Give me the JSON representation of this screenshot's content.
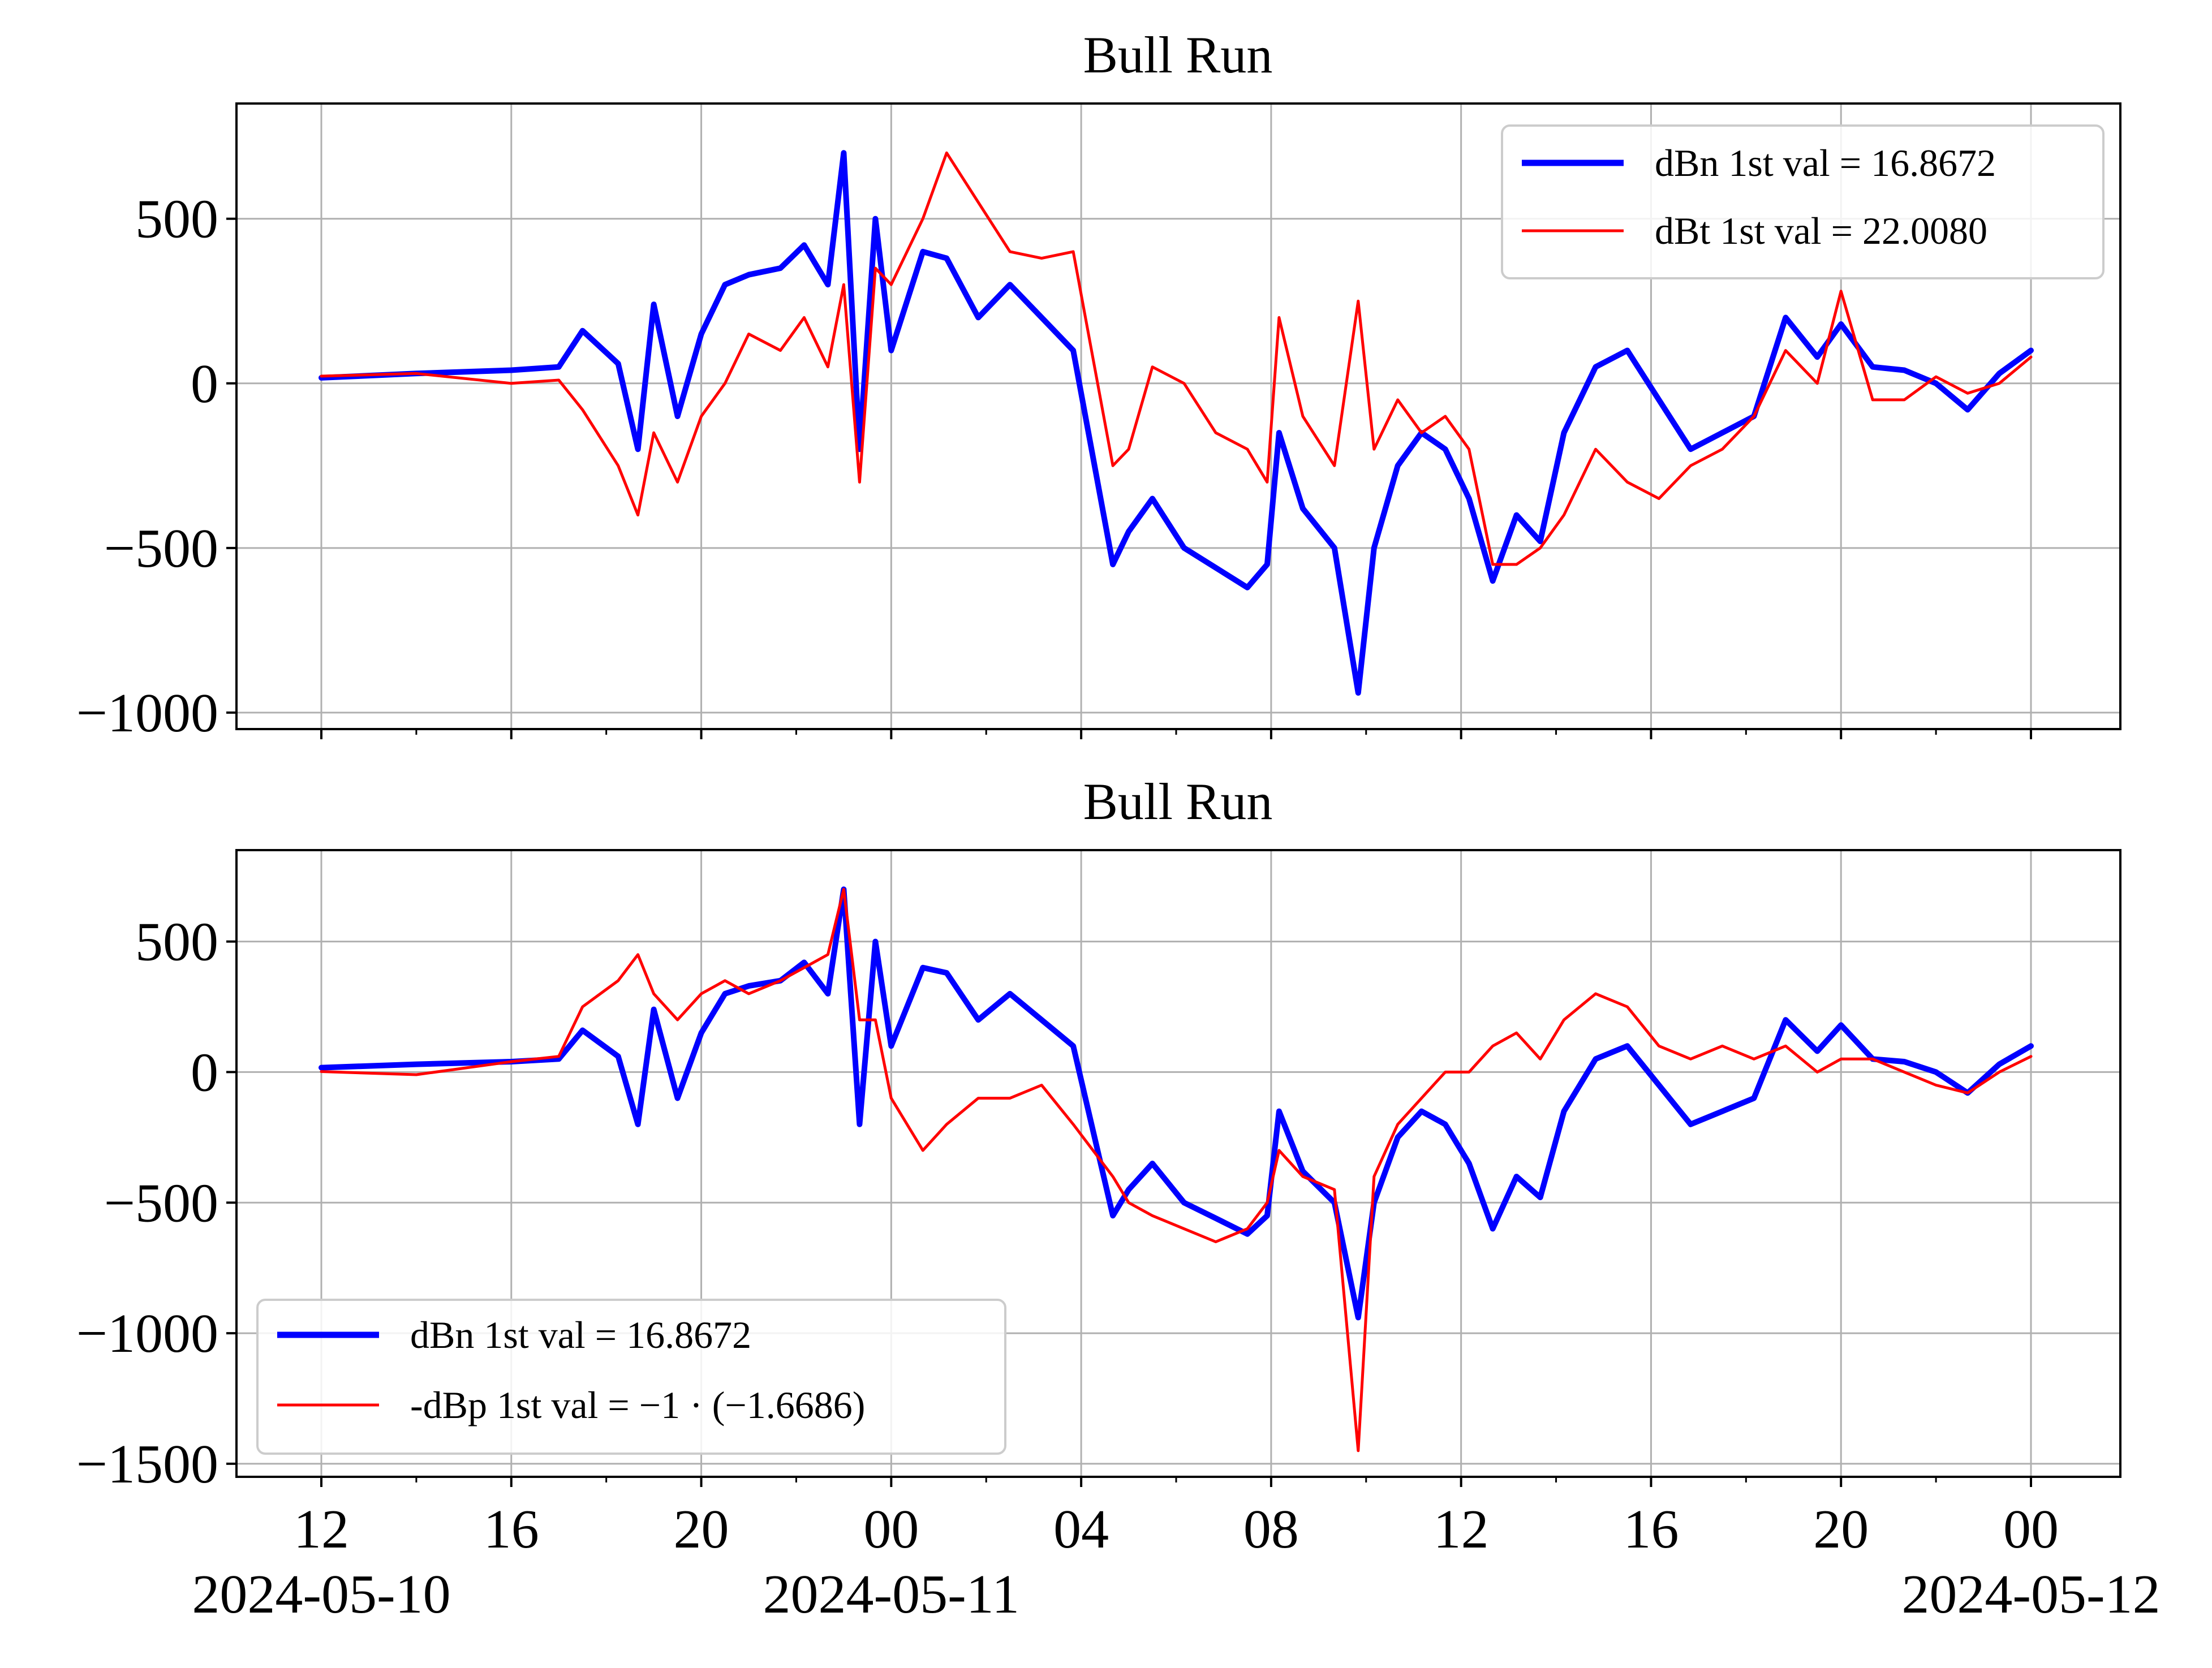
{
  "chart_data": [
    {
      "type": "line",
      "title": "Bull Run",
      "ylim": [
        -1050,
        850
      ],
      "yticks": [
        500,
        0,
        -500,
        -1000
      ],
      "ytick_labels": [
        "500",
        "0",
        "−500",
        "−1000"
      ],
      "x_range_hours": [
        "2024-05-10 12:00",
        "2024-05-12 00:00"
      ],
      "xticks": [
        "2024-05-10 12:00",
        "2024-05-10 16:00",
        "2024-05-10 20:00",
        "2024-05-11 00:00",
        "2024-05-11 04:00",
        "2024-05-11 08:00",
        "2024-05-11 12:00",
        "2024-05-11 16:00",
        "2024-05-11 20:00",
        "2024-05-12 00:00"
      ],
      "grid": true,
      "legend_position": "upper right",
      "series": [
        {
          "name": "dBn 1st val = 16.8672",
          "color": "#0000ff",
          "linewidth": "thick",
          "x": [
            "2024-05-10 12:00",
            "2024-05-10 14:00",
            "2024-05-10 16:00",
            "2024-05-10 17:00",
            "2024-05-10 17:30",
            "2024-05-10 18:15",
            "2024-05-10 18:40",
            "2024-05-10 19:00",
            "2024-05-10 19:30",
            "2024-05-10 20:00",
            "2024-05-10 20:30",
            "2024-05-10 21:00",
            "2024-05-10 21:40",
            "2024-05-10 22:10",
            "2024-05-10 22:40",
            "2024-05-10 23:00",
            "2024-05-10 23:20",
            "2024-05-10 23:40",
            "2024-05-11 00:00",
            "2024-05-11 00:40",
            "2024-05-11 01:10",
            "2024-05-11 01:50",
            "2024-05-11 02:30",
            "2024-05-11 03:10",
            "2024-05-11 03:50",
            "2024-05-11 04:40",
            "2024-05-11 05:00",
            "2024-05-11 05:30",
            "2024-05-11 06:10",
            "2024-05-11 06:50",
            "2024-05-11 07:30",
            "2024-05-11 07:55",
            "2024-05-11 08:10",
            "2024-05-11 08:40",
            "2024-05-11 09:20",
            "2024-05-11 09:50",
            "2024-05-11 10:10",
            "2024-05-11 10:40",
            "2024-05-11 11:10",
            "2024-05-11 11:40",
            "2024-05-11 12:10",
            "2024-05-11 12:40",
            "2024-05-11 13:10",
            "2024-05-11 13:40",
            "2024-05-11 14:10",
            "2024-05-11 14:50",
            "2024-05-11 15:30",
            "2024-05-11 16:10",
            "2024-05-11 16:50",
            "2024-05-11 17:30",
            "2024-05-11 18:10",
            "2024-05-11 18:50",
            "2024-05-11 19:30",
            "2024-05-11 20:00",
            "2024-05-11 20:40",
            "2024-05-11 21:20",
            "2024-05-11 22:00",
            "2024-05-11 22:40",
            "2024-05-11 23:20",
            "2024-05-12 00:00"
          ],
          "y": [
            17,
            30,
            40,
            50,
            160,
            60,
            -200,
            240,
            -100,
            150,
            300,
            330,
            350,
            420,
            300,
            700,
            -200,
            500,
            100,
            400,
            380,
            200,
            300,
            200,
            100,
            -550,
            -450,
            -350,
            -500,
            -560,
            -620,
            -550,
            -150,
            -380,
            -500,
            -940,
            -500,
            -250,
            -150,
            -200,
            -350,
            -600,
            -400,
            -480,
            -150,
            50,
            100,
            -50,
            -200,
            -150,
            -100,
            200,
            80,
            180,
            50,
            40,
            0,
            -80,
            30,
            100
          ]
        },
        {
          "name": "dBt 1st val = 22.0080",
          "color": "#ff0000",
          "linewidth": "thin",
          "x": [
            "2024-05-10 12:00",
            "2024-05-10 14:00",
            "2024-05-10 16:00",
            "2024-05-10 17:00",
            "2024-05-10 17:30",
            "2024-05-10 18:15",
            "2024-05-10 18:40",
            "2024-05-10 19:00",
            "2024-05-10 19:30",
            "2024-05-10 20:00",
            "2024-05-10 20:30",
            "2024-05-10 21:00",
            "2024-05-10 21:40",
            "2024-05-10 22:10",
            "2024-05-10 22:40",
            "2024-05-10 23:00",
            "2024-05-10 23:20",
            "2024-05-10 23:40",
            "2024-05-11 00:00",
            "2024-05-11 00:40",
            "2024-05-11 01:10",
            "2024-05-11 01:50",
            "2024-05-11 02:30",
            "2024-05-11 03:10",
            "2024-05-11 03:50",
            "2024-05-11 04:40",
            "2024-05-11 05:00",
            "2024-05-11 05:30",
            "2024-05-11 06:10",
            "2024-05-11 06:50",
            "2024-05-11 07:30",
            "2024-05-11 07:55",
            "2024-05-11 08:10",
            "2024-05-11 08:40",
            "2024-05-11 09:20",
            "2024-05-11 09:50",
            "2024-05-11 10:10",
            "2024-05-11 10:40",
            "2024-05-11 11:10",
            "2024-05-11 11:40",
            "2024-05-11 12:10",
            "2024-05-11 12:40",
            "2024-05-11 13:10",
            "2024-05-11 13:40",
            "2024-05-11 14:10",
            "2024-05-11 14:50",
            "2024-05-11 15:30",
            "2024-05-11 16:10",
            "2024-05-11 16:50",
            "2024-05-11 17:30",
            "2024-05-11 18:10",
            "2024-05-11 18:50",
            "2024-05-11 19:30",
            "2024-05-11 20:00",
            "2024-05-11 20:40",
            "2024-05-11 21:20",
            "2024-05-11 22:00",
            "2024-05-11 22:40",
            "2024-05-11 23:20",
            "2024-05-12 00:00"
          ],
          "y": [
            22,
            30,
            0,
            10,
            -80,
            -250,
            -400,
            -150,
            -300,
            -100,
            0,
            150,
            100,
            200,
            50,
            300,
            -300,
            350,
            300,
            500,
            700,
            550,
            400,
            380,
            400,
            -250,
            -200,
            50,
            0,
            -150,
            -200,
            -300,
            200,
            -100,
            -250,
            250,
            -200,
            -50,
            -150,
            -100,
            -200,
            -550,
            -550,
            -500,
            -400,
            -200,
            -300,
            -350,
            -250,
            -200,
            -100,
            100,
            0,
            280,
            -50,
            -50,
            20,
            -30,
            0,
            80
          ]
        }
      ]
    },
    {
      "type": "line",
      "title": "Bull Run",
      "ylim": [
        -1550,
        850
      ],
      "yticks": [
        500,
        0,
        -500,
        -1000,
        -1500
      ],
      "ytick_labels": [
        "500",
        "0",
        "−500",
        "−1000",
        "−1500"
      ],
      "x_range_hours": [
        "2024-05-10 12:00",
        "2024-05-12 00:00"
      ],
      "xticks": [
        "2024-05-10 12:00",
        "2024-05-10 16:00",
        "2024-05-10 20:00",
        "2024-05-11 00:00",
        "2024-05-11 04:00",
        "2024-05-11 08:00",
        "2024-05-11 12:00",
        "2024-05-11 16:00",
        "2024-05-11 20:00",
        "2024-05-12 00:00"
      ],
      "xtick_labels": [
        "12",
        "16",
        "20",
        "00",
        "04",
        "08",
        "12",
        "16",
        "20",
        "00"
      ],
      "date_labels": [
        {
          "at": "2024-05-10 12:00",
          "text": "2024-05-10"
        },
        {
          "at": "2024-05-11 00:00",
          "text": "2024-05-11"
        },
        {
          "at": "2024-05-12 00:00",
          "text": "2024-05-12"
        }
      ],
      "grid": true,
      "legend_position": "lower left",
      "series": [
        {
          "name": "dBn 1st val = 16.8672",
          "color": "#0000ff",
          "linewidth": "thick",
          "x": [
            "2024-05-10 12:00",
            "2024-05-10 14:00",
            "2024-05-10 16:00",
            "2024-05-10 17:00",
            "2024-05-10 17:30",
            "2024-05-10 18:15",
            "2024-05-10 18:40",
            "2024-05-10 19:00",
            "2024-05-10 19:30",
            "2024-05-10 20:00",
            "2024-05-10 20:30",
            "2024-05-10 21:00",
            "2024-05-10 21:40",
            "2024-05-10 22:10",
            "2024-05-10 22:40",
            "2024-05-10 23:00",
            "2024-05-10 23:20",
            "2024-05-10 23:40",
            "2024-05-11 00:00",
            "2024-05-11 00:40",
            "2024-05-11 01:10",
            "2024-05-11 01:50",
            "2024-05-11 02:30",
            "2024-05-11 03:10",
            "2024-05-11 03:50",
            "2024-05-11 04:40",
            "2024-05-11 05:00",
            "2024-05-11 05:30",
            "2024-05-11 06:10",
            "2024-05-11 06:50",
            "2024-05-11 07:30",
            "2024-05-11 07:55",
            "2024-05-11 08:10",
            "2024-05-11 08:40",
            "2024-05-11 09:20",
            "2024-05-11 09:50",
            "2024-05-11 10:10",
            "2024-05-11 10:40",
            "2024-05-11 11:10",
            "2024-05-11 11:40",
            "2024-05-11 12:10",
            "2024-05-11 12:40",
            "2024-05-11 13:10",
            "2024-05-11 13:40",
            "2024-05-11 14:10",
            "2024-05-11 14:50",
            "2024-05-11 15:30",
            "2024-05-11 16:10",
            "2024-05-11 16:50",
            "2024-05-11 17:30",
            "2024-05-11 18:10",
            "2024-05-11 18:50",
            "2024-05-11 19:30",
            "2024-05-11 20:00",
            "2024-05-11 20:40",
            "2024-05-11 21:20",
            "2024-05-11 22:00",
            "2024-05-11 22:40",
            "2024-05-11 23:20",
            "2024-05-12 00:00"
          ],
          "y": [
            17,
            30,
            40,
            50,
            160,
            60,
            -200,
            240,
            -100,
            150,
            300,
            330,
            350,
            420,
            300,
            700,
            -200,
            500,
            100,
            400,
            380,
            200,
            300,
            200,
            100,
            -550,
            -450,
            -350,
            -500,
            -560,
            -620,
            -550,
            -150,
            -380,
            -500,
            -940,
            -500,
            -250,
            -150,
            -200,
            -350,
            -600,
            -400,
            -480,
            -150,
            50,
            100,
            -50,
            -200,
            -150,
            -100,
            200,
            80,
            180,
            50,
            40,
            0,
            -80,
            30,
            100
          ]
        },
        {
          "name": "-dBp 1st val = −1 · (−1.6686)",
          "color": "#ff0000",
          "linewidth": "thin",
          "x": [
            "2024-05-10 12:00",
            "2024-05-10 14:00",
            "2024-05-10 16:00",
            "2024-05-10 17:00",
            "2024-05-10 17:30",
            "2024-05-10 18:15",
            "2024-05-10 18:40",
            "2024-05-10 19:00",
            "2024-05-10 19:30",
            "2024-05-10 20:00",
            "2024-05-10 20:30",
            "2024-05-10 21:00",
            "2024-05-10 21:40",
            "2024-05-10 22:10",
            "2024-05-10 22:40",
            "2024-05-10 23:00",
            "2024-05-10 23:20",
            "2024-05-10 23:40",
            "2024-05-11 00:00",
            "2024-05-11 00:40",
            "2024-05-11 01:10",
            "2024-05-11 01:50",
            "2024-05-11 02:30",
            "2024-05-11 03:10",
            "2024-05-11 03:50",
            "2024-05-11 04:40",
            "2024-05-11 05:00",
            "2024-05-11 05:30",
            "2024-05-11 06:10",
            "2024-05-11 06:50",
            "2024-05-11 07:30",
            "2024-05-11 07:55",
            "2024-05-11 08:10",
            "2024-05-11 08:40",
            "2024-05-11 09:20",
            "2024-05-11 09:50",
            "2024-05-11 10:10",
            "2024-05-11 10:40",
            "2024-05-11 11:10",
            "2024-05-11 11:40",
            "2024-05-11 12:10",
            "2024-05-11 12:40",
            "2024-05-11 13:10",
            "2024-05-11 13:40",
            "2024-05-11 14:10",
            "2024-05-11 14:50",
            "2024-05-11 15:30",
            "2024-05-11 16:10",
            "2024-05-11 16:50",
            "2024-05-11 17:30",
            "2024-05-11 18:10",
            "2024-05-11 18:50",
            "2024-05-11 19:30",
            "2024-05-11 20:00",
            "2024-05-11 20:40",
            "2024-05-11 21:20",
            "2024-05-11 22:00",
            "2024-05-11 22:40",
            "2024-05-11 23:20",
            "2024-05-12 00:00"
          ],
          "y": [
            2,
            -10,
            40,
            60,
            250,
            350,
            450,
            300,
            200,
            300,
            350,
            300,
            350,
            400,
            450,
            700,
            200,
            200,
            -100,
            -300,
            -200,
            -100,
            -100,
            -50,
            -200,
            -400,
            -500,
            -550,
            -600,
            -650,
            -600,
            -500,
            -300,
            -400,
            -450,
            -1450,
            -400,
            -200,
            -100,
            0,
            0,
            100,
            150,
            50,
            200,
            300,
            250,
            100,
            50,
            100,
            50,
            100,
            0,
            50,
            50,
            0,
            -50,
            -80,
            0,
            60
          ]
        }
      ]
    }
  ]
}
